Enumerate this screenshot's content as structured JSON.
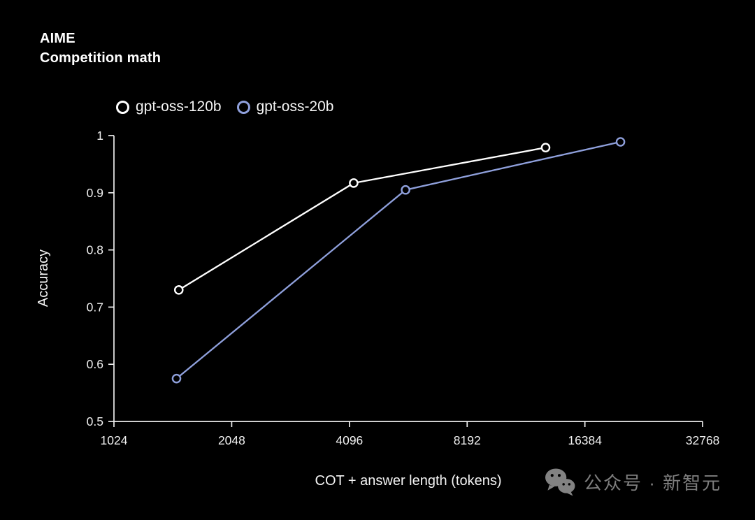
{
  "title": {
    "line1": "AIME",
    "line2": "Competition math"
  },
  "legend": {
    "items": [
      {
        "label": "gpt-oss-120b",
        "color": "#ffffff"
      },
      {
        "label": "gpt-oss-20b",
        "color": "#8fa0dc"
      }
    ]
  },
  "watermark": {
    "text": "公众号 · 新智元",
    "color": "#7e7e7e",
    "icon": "wechat-icon"
  },
  "chart_data": {
    "type": "line",
    "title": "AIME Competition math",
    "xlabel": "COT + answer length (tokens)",
    "ylabel": "Accuracy",
    "x_scale": "log2",
    "xlim": [
      1024,
      32768
    ],
    "ylim": [
      0.5,
      1
    ],
    "xticks": [
      1024,
      2048,
      4096,
      8192,
      16384,
      32768
    ],
    "yticks": [
      1,
      0.9,
      0.8,
      0.7,
      0.6,
      0.5
    ],
    "grid": false,
    "legend_position": "top-left",
    "marker": {
      "shape": "open-circle",
      "fill": "#000000"
    },
    "axis_color": "#ededed",
    "tick_label_color": "#f0f0f0",
    "series": [
      {
        "name": "gpt-oss-120b",
        "color": "#ffffff",
        "points": [
          [
            1500,
            0.73
          ],
          [
            4200,
            0.917
          ],
          [
            13000,
            0.979
          ]
        ]
      },
      {
        "name": "gpt-oss-20b",
        "color": "#8fa0dc",
        "points": [
          [
            1480,
            0.575
          ],
          [
            5700,
            0.905
          ],
          [
            20200,
            0.989
          ]
        ]
      }
    ]
  }
}
